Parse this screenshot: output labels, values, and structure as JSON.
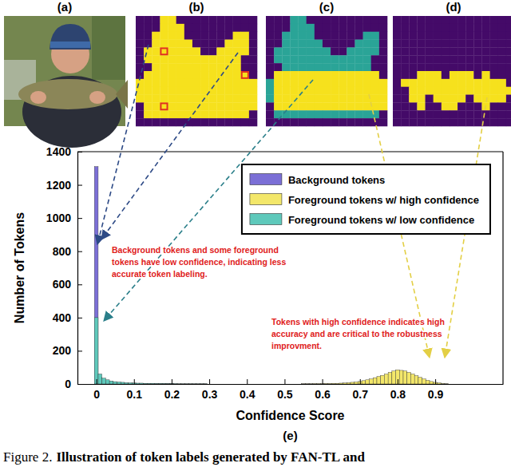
{
  "panels": [
    "(a)",
    "(b)",
    "(c)",
    "(d)"
  ],
  "caption": {
    "label": "Figure 2.",
    "text": "Illustration of token labels generated by FAN-TL and"
  },
  "chart_data": {
    "type": "histogram",
    "title": "(e)",
    "x_label": "Confidence Score",
    "y_label": "Number of Tokens",
    "xlim": [
      -0.05,
      1.08
    ],
    "ylim": [
      0,
      1400
    ],
    "xticks": [
      0,
      0.1,
      0.2,
      0.3,
      0.4,
      0.5,
      0.6,
      0.7,
      0.8,
      0.9
    ],
    "yticks": [
      0,
      200,
      400,
      600,
      800,
      1000,
      1200,
      1400
    ],
    "grid": false,
    "legend": "upper right",
    "bins": [
      -0.005,
      0.005,
      0.015,
      0.025,
      0.035,
      0.045,
      0.055,
      0.065,
      0.075,
      0.085,
      0.095,
      0.105,
      0.115,
      0.125,
      0.135,
      0.145,
      0.155,
      0.165,
      0.175,
      0.185,
      0.195,
      0.205,
      0.215,
      0.225,
      0.235,
      0.245,
      0.255,
      0.265,
      0.275,
      0.285,
      0.295,
      0.305,
      0.315,
      0.325,
      0.335,
      0.345,
      0.355,
      0.365,
      0.375,
      0.385,
      0.395,
      0.405,
      0.415,
      0.425,
      0.435,
      0.445,
      0.455,
      0.465,
      0.475,
      0.485,
      0.495,
      0.505,
      0.515,
      0.525,
      0.535,
      0.545,
      0.555,
      0.565,
      0.575,
      0.585,
      0.595,
      0.605,
      0.615,
      0.625,
      0.635,
      0.645,
      0.655,
      0.665,
      0.675,
      0.685,
      0.695,
      0.705,
      0.715,
      0.725,
      0.735,
      0.745,
      0.755,
      0.765,
      0.775,
      0.785,
      0.795,
      0.805,
      0.815,
      0.825,
      0.835,
      0.845,
      0.855,
      0.865,
      0.875,
      0.885,
      0.895,
      0.905,
      0.915,
      0.925,
      0.935
    ],
    "series": [
      {
        "name": "Background tokens",
        "color": "#7b6fd6",
        "values": [
          1310,
          40,
          15,
          8,
          5,
          4,
          3,
          3,
          2,
          2,
          2,
          2,
          1,
          1,
          1,
          1,
          1,
          1,
          1,
          1,
          1,
          0,
          0,
          0,
          0,
          0,
          0,
          0,
          0,
          0,
          0,
          0,
          0,
          0,
          0,
          0,
          0,
          0,
          0,
          0,
          0,
          0,
          0,
          0,
          0,
          0,
          0,
          0,
          0,
          0,
          0,
          0,
          0,
          0,
          0,
          0,
          0,
          0,
          0,
          0,
          0,
          0,
          0,
          0,
          0,
          0,
          0,
          0,
          0,
          0,
          0,
          0,
          0,
          0,
          0,
          0,
          0,
          0,
          0,
          0,
          0,
          0,
          0,
          0,
          0,
          0,
          0,
          0,
          0,
          0,
          0,
          0,
          0,
          0
        ]
      },
      {
        "name": "Foreground tokens w/ high confidence",
        "color": "#f3e76a",
        "values": [
          0,
          0,
          0,
          0,
          0,
          0,
          0,
          0,
          0,
          0,
          0,
          0,
          0,
          0,
          0,
          0,
          0,
          0,
          0,
          0,
          0,
          0,
          0,
          0,
          0,
          0,
          0,
          0,
          0,
          0,
          0,
          0,
          0,
          0,
          0,
          0,
          0,
          0,
          0,
          0,
          0,
          0,
          0,
          0,
          0,
          0,
          0,
          0,
          0,
          0,
          0,
          0,
          0,
          0,
          0,
          1,
          1,
          1,
          2,
          2,
          2,
          3,
          3,
          4,
          4,
          5,
          6,
          8,
          10,
          12,
          15,
          20,
          25,
          30,
          38,
          45,
          52,
          60,
          70,
          78,
          85,
          82,
          78,
          70,
          60,
          50,
          40,
          30,
          22,
          15,
          10,
          6,
          3,
          1
        ]
      },
      {
        "name": "Foreground tokens w/ low confidence",
        "color": "#5ec9bb",
        "values": [
          400,
          60,
          35,
          25,
          18,
          14,
          12,
          10,
          8,
          7,
          6,
          5,
          5,
          4,
          4,
          4,
          3,
          3,
          3,
          2,
          2,
          2,
          1,
          1,
          1,
          1,
          1,
          1,
          1,
          1,
          0,
          0,
          0,
          0,
          0,
          0,
          0,
          0,
          0,
          0,
          0,
          0,
          0,
          0,
          0,
          0,
          0,
          0,
          0,
          0,
          0,
          0,
          0,
          0,
          0,
          0,
          0,
          0,
          0,
          0,
          0,
          0,
          0,
          0,
          0,
          0,
          0,
          0,
          0,
          0,
          0,
          0,
          0,
          0,
          0,
          0,
          0,
          0,
          0,
          0,
          0,
          0,
          0,
          0,
          0,
          0,
          0,
          0,
          0,
          0,
          0,
          0,
          0,
          0
        ]
      }
    ],
    "annotations": [
      {
        "lines": [
          "Background tokens and some foreground",
          "tokens have low confidence, indicating less",
          "accurate token labeling."
        ]
      },
      {
        "lines": [
          "Tokens with high confidence indicates high",
          "accuracy and are critical to the robustness",
          "improvment."
        ]
      }
    ]
  }
}
